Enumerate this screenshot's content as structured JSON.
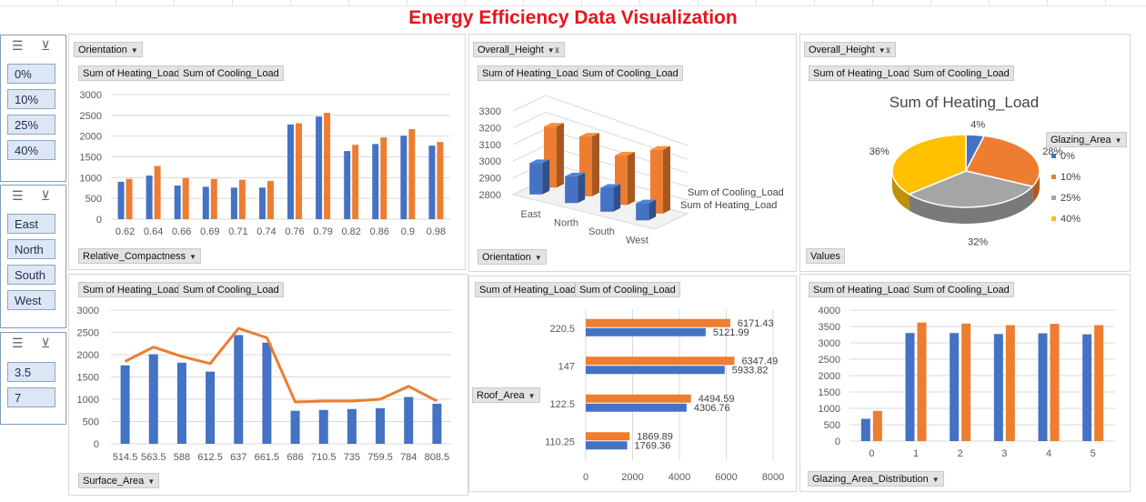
{
  "title": "Energy Efficiency Data Visualization",
  "slicers": [
    {
      "name": "glazing",
      "items": [
        "0%",
        "10%",
        "25%",
        "40%"
      ]
    },
    {
      "name": "orientation",
      "items": [
        "East",
        "North",
        "South",
        "West"
      ]
    },
    {
      "name": "height",
      "items": [
        "3.5",
        "7"
      ]
    }
  ],
  "buttons": {
    "heating": "Sum of Heating_Load",
    "cooling": "Sum of Cooling_Load",
    "orientation": "Orientation",
    "overall_height": "Overall_Height",
    "relative_compactness": "Relative_Compactness",
    "surface_area": "Surface_Area",
    "roof_area": "Roof_Area",
    "values": "Values",
    "glazing_area": "Glazing_Area",
    "glazing_dist": "Glazing_Area_Distribution"
  },
  "colors": {
    "heating": "#4472c4",
    "cooling": "#ed7d31",
    "gray": "#a5a5a5",
    "gold": "#ffc000"
  },
  "chart_data": [
    {
      "id": "c1",
      "type": "bar",
      "categories": [
        "0.62",
        "0.64",
        "0.66",
        "0.69",
        "0.71",
        "0.74",
        "0.76",
        "0.79",
        "0.82",
        "0.86",
        "0.9",
        "0.98"
      ],
      "series": [
        {
          "name": "Sum of Heating_Load",
          "values": [
            900,
            1050,
            810,
            780,
            760,
            760,
            2280,
            2470,
            1640,
            1810,
            2010,
            1770
          ]
        },
        {
          "name": "Sum of Cooling_Load",
          "values": [
            970,
            1280,
            990,
            970,
            950,
            920,
            2310,
            2560,
            1790,
            1970,
            2170,
            1860
          ]
        }
      ],
      "ylim": [
        0,
        3000
      ],
      "yticks": [
        0,
        500,
        1000,
        1500,
        2000,
        2500,
        3000
      ]
    },
    {
      "id": "c2",
      "type": "bar",
      "categories": [
        "East",
        "North",
        "South",
        "West"
      ],
      "series": [
        {
          "name": "Sum of Heating_Load",
          "values": [
            2990,
            2970,
            2960,
            2920
          ]
        },
        {
          "name": "Sum of Cooling_Load",
          "values": [
            3170,
            3180,
            3130,
            3250
          ]
        }
      ],
      "ylim": [
        2800,
        3300
      ],
      "yticks": [
        2800,
        2900,
        3000,
        3100,
        3200,
        3300
      ]
    },
    {
      "id": "c3",
      "type": "pie",
      "title": "Sum of Heating_Load",
      "labels": [
        "0%",
        "10%",
        "25%",
        "40%"
      ],
      "values": [
        4,
        28,
        32,
        36
      ],
      "value_labels": [
        "4%",
        "28%",
        "32%",
        "36%"
      ]
    },
    {
      "id": "c4",
      "type": "bar",
      "categories": [
        "514.5",
        "563.5",
        "588",
        "612.5",
        "637",
        "661.5",
        "686",
        "710.5",
        "735",
        "759.5",
        "784",
        "808.5"
      ],
      "series": [
        {
          "name": "Sum of Heating_Load",
          "values": [
            1760,
            2010,
            1820,
            1620,
            2440,
            2270,
            740,
            760,
            780,
            800,
            1050,
            900
          ]
        },
        {
          "name": "Sum of Cooling_Load",
          "values": [
            1850,
            2170,
            1960,
            1800,
            2590,
            2380,
            940,
            960,
            960,
            1000,
            1290,
            960
          ]
        }
      ],
      "ylim": [
        0,
        3000
      ],
      "yticks": [
        0,
        500,
        1000,
        1500,
        2000,
        2500,
        3000
      ]
    },
    {
      "id": "c5",
      "type": "bar",
      "categories": [
        "220.5",
        "147",
        "122.5",
        "110.25"
      ],
      "series": [
        {
          "name": "Sum of Heating_Load",
          "values": [
            5121.99,
            5933.82,
            4306.76,
            1769.36
          ],
          "labels": [
            "5121.99",
            "5933.82",
            "4306.76",
            "1769.36"
          ]
        },
        {
          "name": "Sum of Cooling_Load",
          "values": [
            6171.43,
            6347.49,
            4494.59,
            1869.89
          ],
          "labels": [
            "6171.43",
            "6347.49",
            "4494.59",
            "1869.89"
          ]
        }
      ],
      "xlim": [
        0,
        8000
      ],
      "xticks": [
        0,
        2000,
        4000,
        6000,
        8000
      ]
    },
    {
      "id": "c6",
      "type": "bar",
      "categories": [
        "0",
        "1",
        "2",
        "3",
        "4",
        "5"
      ],
      "series": [
        {
          "name": "Sum of Heating_Load",
          "values": [
            680,
            3300,
            3300,
            3270,
            3290,
            3260
          ]
        },
        {
          "name": "Sum of Cooling_Load",
          "values": [
            920,
            3620,
            3590,
            3540,
            3580,
            3540
          ]
        }
      ],
      "ylim": [
        0,
        4000
      ],
      "yticks": [
        0,
        500,
        1000,
        1500,
        2000,
        2500,
        3000,
        3500,
        4000
      ]
    }
  ]
}
